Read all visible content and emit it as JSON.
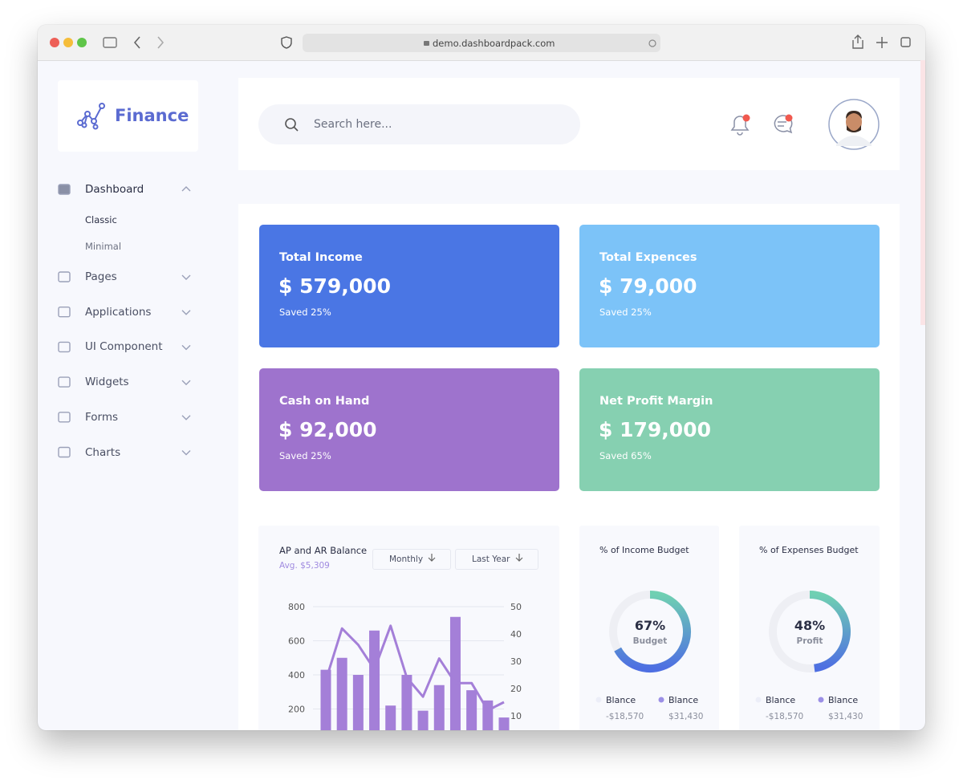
{
  "browser": {
    "url": "demo.dashboardpack.com"
  },
  "sidebar": {
    "brand": "Finance",
    "menu": [
      {
        "label": "Dashboard",
        "children": [
          "Classic",
          "Minimal"
        ]
      },
      {
        "label": "Pages"
      },
      {
        "label": "Applications"
      },
      {
        "label": "UI Component"
      },
      {
        "label": "Widgets"
      },
      {
        "label": "Forms"
      },
      {
        "label": "Charts"
      }
    ]
  },
  "header": {
    "search_placeholder": "Search here..."
  },
  "cards": [
    {
      "title": "Total Income",
      "value": "$ 579,000",
      "note": "Saved 25%",
      "color": "#4a76e4"
    },
    {
      "title": "Total Expences",
      "value": "$ 79,000",
      "note": "Saved 25%",
      "color": "#7cc3f8"
    },
    {
      "title": "Cash on Hand",
      "value": "$ 92,000",
      "note": "Saved 25%",
      "color": "#9e73cd"
    },
    {
      "title": "Net Profit Margin",
      "value": "$ 179,000",
      "note": "Saved 65%",
      "color": "#86d0b1"
    }
  ],
  "chart_data": [
    {
      "type": "bar",
      "title": "AP and AR Balance",
      "subtitle": "Avg. $5,309",
      "filters": [
        "Monthly",
        "Last Year"
      ],
      "ylim": [
        0,
        800
      ],
      "yticks": [
        200,
        400,
        600,
        800
      ],
      "y2lim": [
        0,
        50
      ],
      "y2ticks": [
        10,
        20,
        30,
        40,
        50
      ],
      "grid": true,
      "series": [
        {
          "type": "bar",
          "color": "#a47fd8",
          "values": [
            430,
            500,
            400,
            660,
            220,
            400,
            190,
            340,
            740,
            310,
            250,
            150
          ]
        },
        {
          "type": "line",
          "axis": "y2",
          "color": "#a47fd8",
          "values": [
            23,
            42,
            36,
            27,
            43,
            24,
            17,
            31,
            22,
            22,
            12,
            15
          ]
        }
      ]
    },
    {
      "type": "donut",
      "title": "% of Income Budget",
      "values": [
        67
      ],
      "value_labels": [
        "67%"
      ],
      "center_label": "Budget",
      "colors": [
        "#6fd0b2",
        "#4e6fe2"
      ],
      "legend": [
        {
          "name": "Blance",
          "value": "-$18,570",
          "color": "#eceef8"
        },
        {
          "name": "Blance",
          "value": "$31,430",
          "color": "#9b8fe6"
        }
      ]
    },
    {
      "type": "donut",
      "title": "% of Expenses Budget",
      "values": [
        48
      ],
      "value_labels": [
        "48%"
      ],
      "center_label": "Profit",
      "colors": [
        "#6fd0b2",
        "#4e6fe2"
      ],
      "legend": [
        {
          "name": "Blance",
          "value": "-$18,570",
          "color": "#eceef8"
        },
        {
          "name": "Blance",
          "value": "$31,430",
          "color": "#9b8fe6"
        }
      ]
    }
  ]
}
